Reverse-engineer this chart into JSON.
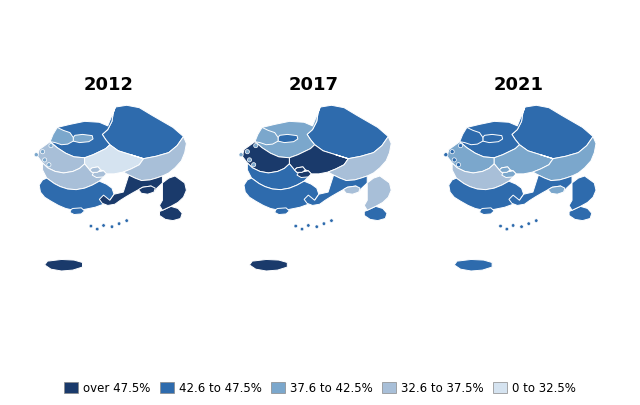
{
  "title_2012": "2012",
  "title_2017": "2017",
  "title_2021": "2021",
  "legend_labels": [
    "over 47.5%",
    "42.6 to 47.5%",
    "37.6 to 42.5%",
    "32.6 to 37.5%",
    "0 to 32.5%"
  ],
  "legend_colors": [
    "#1a3a6b",
    "#2e6bad",
    "#7ba7cc",
    "#a8bfd8",
    "#d5e3f0"
  ],
  "background_color": "#ffffff",
  "title_fontsize": 13,
  "legend_fontsize": 8.5,
  "color_2012": {
    "Gangwon": "#2e6bad",
    "Seoul": "#7ba7cc",
    "Incheon": "#7ba7cc",
    "Gyeonggi": "#2e6bad",
    "Chungbuk": "#d5e3f0",
    "Chungnam": "#a8bfd8",
    "Daejeon": "#a8bfd8",
    "Sejong": "#a8bfd8",
    "Jeonbuk": "#a8bfd8",
    "Jeonnam": "#2e6bad",
    "Gwangju": "#2e6bad",
    "Gyeongbuk": "#a8bfd8",
    "Daegu": "#1a3a6b",
    "Gyeongnam": "#1a3a6b",
    "Busan": "#1a3a6b",
    "Ulsan": "#1a3a6b",
    "Jeju": "#1a3a6b"
  },
  "color_2017": {
    "Gangwon": "#2e6bad",
    "Seoul": "#2e6bad",
    "Incheon": "#7ba7cc",
    "Gyeonggi": "#7ba7cc",
    "Chungbuk": "#1a3a6b",
    "Chungnam": "#1a3a6b",
    "Daejeon": "#1a3a6b",
    "Sejong": "#1a3a6b",
    "Jeonbuk": "#2e6bad",
    "Jeonnam": "#2e6bad",
    "Gwangju": "#2e6bad",
    "Gyeongbuk": "#a8bfd8",
    "Daegu": "#a8bfd8",
    "Gyeongnam": "#2e6bad",
    "Busan": "#2e6bad",
    "Ulsan": "#a8bfd8",
    "Jeju": "#1a3a6b"
  },
  "color_2021": {
    "Gangwon": "#2e6bad",
    "Seoul": "#2e6bad",
    "Incheon": "#2e6bad",
    "Gyeonggi": "#2e6bad",
    "Chungbuk": "#7ba7cc",
    "Chungnam": "#7ba7cc",
    "Daejeon": "#7ba7cc",
    "Sejong": "#7ba7cc",
    "Jeonbuk": "#a8bfd8",
    "Jeonnam": "#2e6bad",
    "Gwangju": "#2e6bad",
    "Gyeongbuk": "#7ba7cc",
    "Daegu": "#7ba7cc",
    "Gyeongnam": "#2e6bad",
    "Busan": "#2e6bad",
    "Ulsan": "#2e6bad",
    "Jeju": "#2e6bad"
  }
}
